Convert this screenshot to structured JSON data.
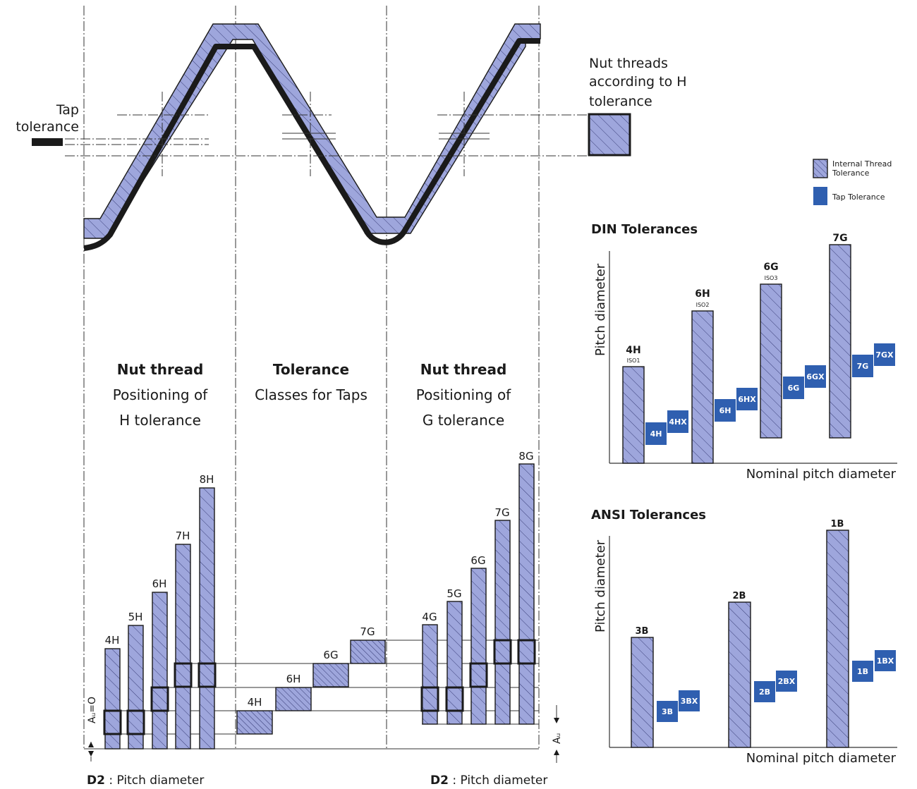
{
  "colors": {
    "hatch_bg": "#9ea6dc",
    "hatch_line": "#3a3f7a",
    "tap_blue": "#2f5fb0",
    "tap_text": "#ffffff",
    "line": "#1a1a1a"
  },
  "profile": {
    "tap_tolerance_label_1": "Tap",
    "tap_tolerance_label_2": "tolerance",
    "nut_threads_label_1": "Nut threads",
    "nut_threads_label_2": "according to H",
    "nut_threads_label_3": "tolerance"
  },
  "legend": {
    "internal_label_1": "Internal Thread",
    "internal_label_2": "Tolerance",
    "tap_label": "Tap Tolerance"
  },
  "sections": {
    "h_title": "Nut thread",
    "h_sub_1": "Positioning of",
    "h_sub_2": "H tolerance",
    "t_title": "Tolerance",
    "t_sub_1": "Classes for Taps",
    "g_title": "Nut thread",
    "g_sub_1": "Positioning of",
    "g_sub_2": "G tolerance"
  },
  "h_bars": [
    "4H",
    "5H",
    "6H",
    "7H",
    "8H"
  ],
  "tap_classes": [
    "4H",
    "6H",
    "6G",
    "7G"
  ],
  "g_bars": [
    "4G",
    "5G",
    "6G",
    "7G",
    "8G"
  ],
  "axis": {
    "au0": "Aᵤ=O",
    "au": "Aᵤ",
    "d2_left_bold": "D2",
    "d2_left_text": " : Pitch diameter",
    "d2_right_bold": "D2",
    "d2_right_text": " : Pitch diameter"
  },
  "din": {
    "title": "DIN Tolerances",
    "ylabel": "Pitch diameter",
    "xlabel": "Nominal pitch diameter",
    "groups": [
      {
        "label": "4H",
        "iso": "ISO1",
        "tap1": "4H",
        "tap2": "4HX"
      },
      {
        "label": "6H",
        "iso": "ISO2",
        "tap1": "6H",
        "tap2": "6HX"
      },
      {
        "label": "6G",
        "iso": "ISO3",
        "tap1": "6G",
        "tap2": "6GX"
      },
      {
        "label": "7G",
        "iso": "",
        "tap1": "7G",
        "tap2": "7GX"
      }
    ]
  },
  "ansi": {
    "title": "ANSI Tolerances",
    "ylabel": "Pitch diameter",
    "xlabel": "Nominal pitch diameter",
    "groups": [
      {
        "label": "3B",
        "tap1": "3B",
        "tap2": "3BX"
      },
      {
        "label": "2B",
        "tap1": "2B",
        "tap2": "2BX"
      },
      {
        "label": "1B",
        "tap1": "1B",
        "tap2": "1BX"
      }
    ]
  }
}
